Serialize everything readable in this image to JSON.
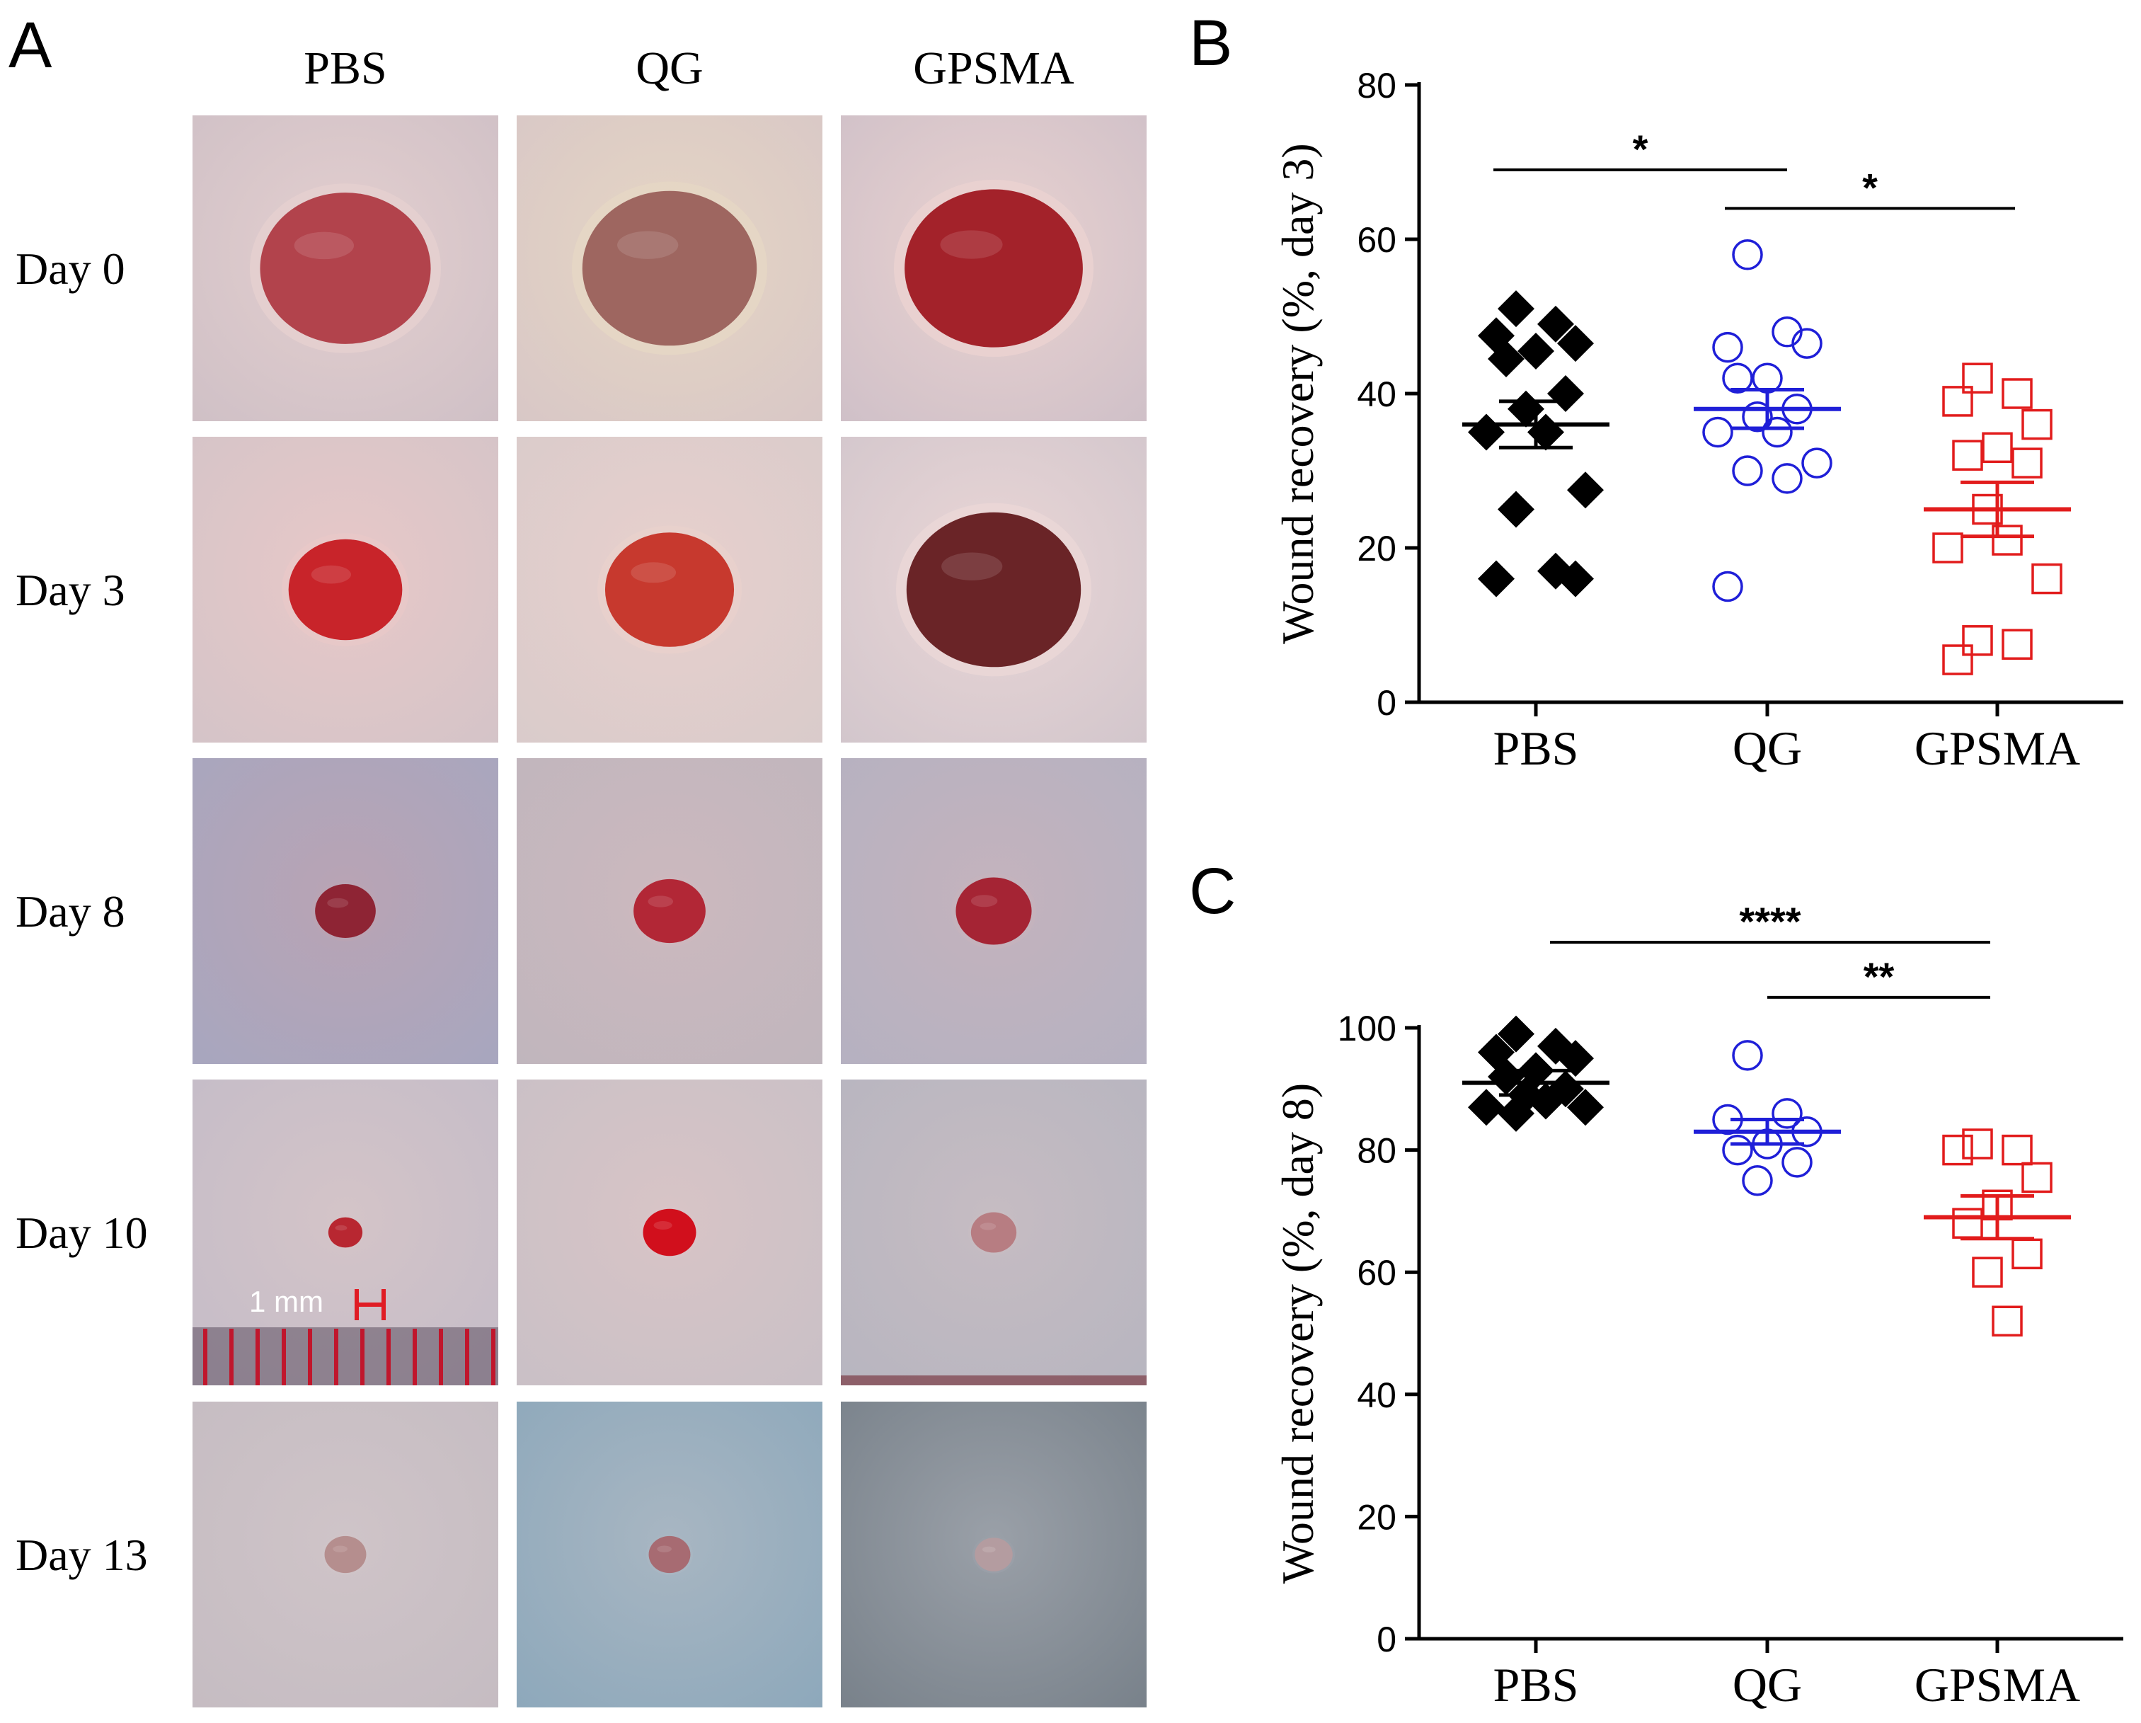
{
  "panel_a": {
    "letter": "A",
    "columns": [
      "PBS",
      "QG",
      "GPSMA"
    ],
    "rows": [
      "Day 0",
      "Day 3",
      "Day 8",
      "Day 10",
      "Day 13"
    ],
    "scale_bar_label": "1 mm",
    "photos": [
      [
        {
          "bg": "#cfc0c6",
          "wound": "#b2434c",
          "edge": "#e4cfcf",
          "size": 0.9
        },
        {
          "bg": "#d8c7c6",
          "wound": "#9e6660",
          "edge": "#e6d6c4",
          "size": 0.92
        },
        {
          "bg": "#cfc0c8",
          "wound": "#a3222a",
          "edge": "#ead2d0",
          "size": 0.94
        }
      ],
      [
        {
          "bg": "#d4c4c8",
          "wound": "#c8242a",
          "edge": "#e8c8c8",
          "size": 0.6
        },
        {
          "bg": "#d9cbcb",
          "wound": "#c7392e",
          "edge": "#e8d0cc",
          "size": 0.68
        },
        {
          "bg": "#d2c6cc",
          "wound": "#6a2427",
          "edge": "#ead6d6",
          "size": 0.92
        }
      ],
      [
        {
          "bg": "#a7a6bf",
          "wound": "#8e2434",
          "edge": "#b9a4b4",
          "size": 0.32
        },
        {
          "bg": "#c0b6bd",
          "wound": "#b22736",
          "edge": "#ccb8be",
          "size": 0.38
        },
        {
          "bg": "#b5b1c1",
          "wound": "#a52434",
          "edge": "#c4b3bd",
          "size": 0.4
        }
      ],
      [
        {
          "bg": "#c4bcc8",
          "wound": "#b82731",
          "edge": "#d4c4c8",
          "size": 0.18
        },
        {
          "bg": "#c9c0c6",
          "wound": "#d10f1c",
          "edge": "#d8c4c6",
          "size": 0.28
        },
        {
          "bg": "#b7b5c0",
          "wound": "#b77d82",
          "edge": "#c6bcc2",
          "size": 0.24
        }
      ],
      [
        {
          "bg": "#c5bcc2",
          "wound": "#b58e8e",
          "edge": "#cfc4c8",
          "size": 0.22
        },
        {
          "bg": "#8da8bb",
          "wound": "#a76b72",
          "edge": "#a8b6c2",
          "size": 0.22
        },
        {
          "bg": "#78818a",
          "wound": "#b49ca0",
          "edge": "#9aa0a8",
          "size": 0.2
        }
      ]
    ]
  },
  "chart_data": [
    {
      "panel_letter": "B",
      "type": "scatter",
      "ylabel": "Wound recovery (%, day 3)",
      "categories": [
        "PBS",
        "QG",
        "GPSMA"
      ],
      "ylim": [
        0,
        80
      ],
      "yticks": [
        0,
        20,
        40,
        60,
        80
      ],
      "series": [
        {
          "category": "PBS",
          "marker": "diamond-filled",
          "color": "#000000",
          "values": [
            51,
            49,
            47.5,
            46.5,
            45.5,
            44.5,
            40,
            38,
            35,
            35,
            27.5,
            25,
            17,
            16,
            16
          ],
          "mean": 36,
          "sem": 3
        },
        {
          "category": "QG",
          "marker": "circle-open",
          "color": "#1f1fd8",
          "values": [
            58,
            48,
            46,
            46.5,
            42,
            42,
            38,
            37,
            35,
            35,
            31,
            30,
            29,
            15
          ],
          "mean": 38,
          "sem": 2.5
        },
        {
          "category": "GPSMA",
          "marker": "square-open",
          "color": "#e21c1c",
          "values": [
            42,
            40,
            39,
            36,
            33,
            32,
            31,
            25,
            21,
            20,
            16,
            8,
            7.5,
            5.5
          ],
          "mean": 25,
          "sem": 3.5
        }
      ],
      "significance": [
        {
          "from": "PBS",
          "to": "QG",
          "y": 69,
          "label": "*"
        },
        {
          "from": "QG",
          "to": "GPSMA",
          "y": 64,
          "label": "*"
        }
      ]
    },
    {
      "panel_letter": "C",
      "type": "scatter",
      "ylabel": "Wound recovery (%, day 8)",
      "categories": [
        "PBS",
        "QG",
        "GPSMA"
      ],
      "ylim": [
        0,
        100
      ],
      "yticks": [
        0,
        20,
        40,
        60,
        80,
        100
      ],
      "series": [
        {
          "category": "PBS",
          "marker": "diamond-filled",
          "color": "#000000",
          "values": [
            99,
            97,
            96,
            95,
            93,
            92,
            90,
            89,
            88,
            87,
            87,
            86
          ],
          "mean": 91,
          "sem": 2
        },
        {
          "category": "QG",
          "marker": "circle-open",
          "color": "#1f1fd8",
          "values": [
            95.5,
            86,
            85,
            83,
            81,
            80,
            78,
            75
          ],
          "mean": 83,
          "sem": 2
        },
        {
          "category": "GPSMA",
          "marker": "square-open",
          "color": "#e21c1c",
          "values": [
            81,
            80,
            80,
            75.5,
            71,
            68,
            63,
            60,
            52
          ],
          "mean": 69,
          "sem": 3.5
        }
      ],
      "significance": [
        {
          "from": "PBS",
          "to": "GPSMA",
          "y": 114,
          "label": "****"
        },
        {
          "from": "QG",
          "to": "GPSMA",
          "y": 105,
          "label": "**"
        }
      ]
    }
  ]
}
